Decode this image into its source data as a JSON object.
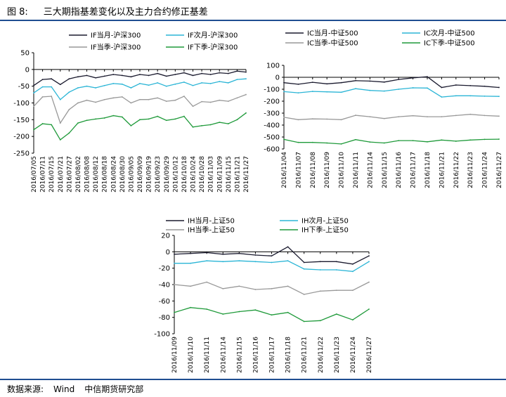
{
  "figure": {
    "label": "图 8:",
    "title": "三大期指基差变化以及主力合约修正基差",
    "source_label": "数据来源:",
    "source": "Wind",
    "org": "中信期货研究部"
  },
  "colors": {
    "rule": "#1f4e91",
    "s1": "#1a1a2e",
    "s2": "#2bb5d6",
    "s3": "#999999",
    "s4": "#1f9a3a"
  },
  "chart_data": [
    {
      "type": "line",
      "id": "IF",
      "ylim": [
        -250,
        50
      ],
      "yticks": [
        50,
        0,
        -50,
        -100,
        -150,
        -200,
        -250
      ],
      "x": [
        "2016/07/05",
        "2016/07/11",
        "2016/07/15",
        "2016/07/21",
        "2016/07/27",
        "2016/08/02",
        "2016/08/08",
        "2016/08/12",
        "2016/08/18",
        "2016/08/24",
        "2016/08/30",
        "2016/09/05",
        "2016/09/09",
        "2016/09/19",
        "2016/09/23",
        "2016/09/29",
        "2016/10/12",
        "2016/10/18",
        "2016/10/24",
        "2016/10/28",
        "2016/11/03",
        "2016/11/09",
        "2016/11/15",
        "2016/11/21",
        "2016/11/27"
      ],
      "legend": [
        "IF当月-沪深300",
        "IF次月-沪深300",
        "IF当季-沪深300",
        "IF下季-沪深300"
      ],
      "series": [
        {
          "name": "IF当月-沪深300",
          "values": [
            -48,
            -30,
            -28,
            -45,
            -28,
            -22,
            -18,
            -25,
            -20,
            -15,
            -18,
            -22,
            -15,
            -18,
            -12,
            -20,
            -15,
            -10,
            -18,
            -12,
            -15,
            -10,
            -12,
            -5,
            -8
          ]
        },
        {
          "name": "IF次月-沪深300",
          "values": [
            -70,
            -52,
            -52,
            -90,
            -68,
            -55,
            -50,
            -55,
            -48,
            -42,
            -44,
            -55,
            -42,
            -47,
            -40,
            -50,
            -44,
            -38,
            -48,
            -40,
            -42,
            -36,
            -40,
            -30,
            -28
          ]
        },
        {
          "name": "IF当季-沪深300",
          "values": [
            -110,
            -82,
            -80,
            -160,
            -120,
            -100,
            -92,
            -98,
            -90,
            -85,
            -82,
            -100,
            -90,
            -90,
            -85,
            -95,
            -92,
            -80,
            -110,
            -96,
            -98,
            -92,
            -95,
            -85,
            -75
          ]
        },
        {
          "name": "IF下季-沪深300",
          "values": [
            -180,
            -162,
            -165,
            -210,
            -190,
            -160,
            -152,
            -148,
            -145,
            -138,
            -142,
            -168,
            -150,
            -148,
            -140,
            -152,
            -148,
            -140,
            -172,
            -168,
            -165,
            -158,
            -162,
            -150,
            -130
          ]
        }
      ]
    },
    {
      "type": "line",
      "id": "IC",
      "ylim": [
        -600,
        100
      ],
      "yticks": [
        100,
        0,
        -100,
        -200,
        -300,
        -400,
        -500,
        -600
      ],
      "x": [
        "2016/11/04",
        "2016/11/07",
        "2016/11/08",
        "2016/11/09",
        "2016/11/10",
        "2016/11/11",
        "2016/11/14",
        "2016/11/15",
        "2016/11/16",
        "2016/11/17",
        "2016/11/18",
        "2016/11/21",
        "2016/11/22",
        "2016/11/23",
        "2016/11/24",
        "2016/11/27"
      ],
      "legend": [
        "IC当月-中证500",
        "IC次月-中证500",
        "IC当季-中证500",
        "IC下季-中证500"
      ],
      "series": [
        {
          "name": "IC当月-中证500",
          "values": [
            -45,
            -58,
            -42,
            -55,
            -45,
            -28,
            -32,
            -40,
            -18,
            -5,
            5,
            -85,
            -65,
            -70,
            -75,
            -85
          ]
        },
        {
          "name": "IC次月-中证500",
          "values": [
            -120,
            -130,
            -118,
            -122,
            -125,
            -95,
            -110,
            -115,
            -100,
            -88,
            -90,
            -165,
            -155,
            -155,
            -158,
            -160
          ]
        },
        {
          "name": "IC当季-中证500",
          "values": [
            -335,
            -355,
            -348,
            -350,
            -355,
            -318,
            -330,
            -345,
            -330,
            -322,
            -330,
            -330,
            -320,
            -310,
            -320,
            -325
          ]
        },
        {
          "name": "IC下季-中证500",
          "values": [
            -520,
            -545,
            -545,
            -550,
            -558,
            -522,
            -542,
            -550,
            -530,
            -530,
            -540,
            -525,
            -535,
            -525,
            -520,
            -518
          ]
        }
      ]
    },
    {
      "type": "line",
      "id": "IH",
      "ylim": [
        -100,
        20
      ],
      "yticks": [
        20,
        0,
        -20,
        -40,
        -60,
        -80,
        -100
      ],
      "x": [
        "2016/11/09",
        "2016/11/10",
        "2016/11/11",
        "2016/11/14",
        "2016/11/15",
        "2016/11/16",
        "2016/11/17",
        "2016/11/18",
        "2016/11/21",
        "2016/11/22",
        "2016/11/23",
        "2016/11/24",
        "2016/11/27"
      ],
      "legend": [
        "IH当月-上证50",
        "IH次月-上证50",
        "IH当季-上证50",
        "IH下季-上证50"
      ],
      "series": [
        {
          "name": "IH当月-上证50",
          "values": [
            -3,
            -2,
            -1,
            -3,
            -2,
            -4,
            -5,
            6,
            -13,
            -12,
            -12,
            -15,
            -5
          ]
        },
        {
          "name": "IH次月-上证50",
          "values": [
            -14,
            -14,
            -11,
            -12,
            -11,
            -12,
            -13,
            -11,
            -21,
            -22,
            -22,
            -24,
            -12
          ]
        },
        {
          "name": "IH当季-上证50",
          "values": [
            -40,
            -42,
            -37,
            -45,
            -42,
            -46,
            -45,
            -42,
            -52,
            -48,
            -47,
            -47,
            -37
          ]
        },
        {
          "name": "IH下季-上证50",
          "values": [
            -74,
            -68,
            -70,
            -76,
            -73,
            -71,
            -77,
            -74,
            -85,
            -84,
            -76,
            -83,
            -70
          ]
        }
      ]
    }
  ]
}
